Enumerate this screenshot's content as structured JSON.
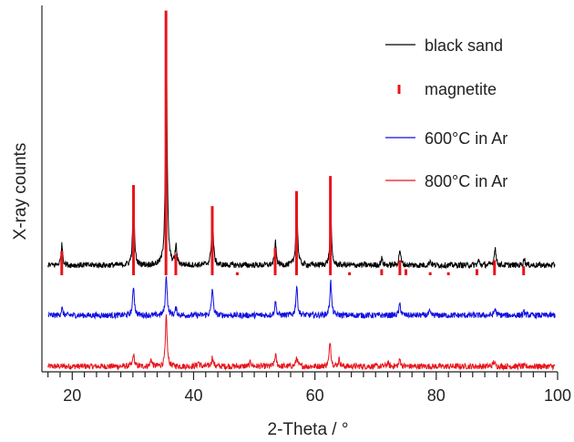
{
  "chart_data": {
    "type": "line",
    "title": "",
    "xlabel": "2-Theta / °",
    "ylabel": "X-ray counts",
    "xlim": [
      15,
      100
    ],
    "x_ticks": [
      20,
      40,
      60,
      80,
      100
    ],
    "x_tick_labels": [
      "20",
      "40",
      "60",
      "80",
      "100"
    ],
    "y_ticks_shown": false,
    "grid": false,
    "legend_position": "top-right",
    "legend": [
      {
        "label": "black sand",
        "symbol": "line",
        "color": "#000000"
      },
      {
        "label": "magnetite",
        "symbol": "tick",
        "color": "#e8141b"
      },
      {
        "label": "600°C in Ar",
        "symbol": "line",
        "color": "#1010e0"
      },
      {
        "label": "800°C in Ar",
        "symbol": "line",
        "color": "#e8141b"
      }
    ],
    "series": [
      {
        "name": "black sand",
        "color": "#000000",
        "baseline": 0,
        "noise": 1.6,
        "peaks": [
          [
            18.3,
            9
          ],
          [
            30.1,
            30
          ],
          [
            35.5,
            100
          ],
          [
            37.1,
            8
          ],
          [
            43.1,
            25
          ],
          [
            53.5,
            10
          ],
          [
            57.0,
            29
          ],
          [
            62.6,
            22
          ],
          [
            71.0,
            3
          ],
          [
            74.0,
            7
          ],
          [
            79.0,
            2
          ],
          [
            87.0,
            2
          ],
          [
            89.7,
            8
          ],
          [
            94.5,
            3
          ]
        ]
      },
      {
        "name": "magnetite",
        "color": "#e8141b",
        "type": "reference-sticks",
        "sticks": [
          [
            18.27,
            8
          ],
          [
            30.1,
            30
          ],
          [
            35.45,
            88
          ],
          [
            37.07,
            7
          ],
          [
            43.08,
            23
          ],
          [
            47.2,
            1
          ],
          [
            53.45,
            9
          ],
          [
            56.97,
            28
          ],
          [
            62.55,
            33
          ],
          [
            65.7,
            1
          ],
          [
            71.0,
            2
          ],
          [
            74.0,
            5
          ],
          [
            75.0,
            2
          ],
          [
            79.0,
            1
          ],
          [
            82.0,
            1
          ],
          [
            86.7,
            2
          ],
          [
            89.6,
            5
          ],
          [
            94.4,
            3
          ]
        ]
      },
      {
        "name": "600°C in Ar",
        "color": "#1010e0",
        "baseline": 0,
        "noise": 1.6,
        "peaks": [
          [
            18.3,
            3
          ],
          [
            30.1,
            13
          ],
          [
            35.5,
            18
          ],
          [
            37.1,
            3
          ],
          [
            43.1,
            12
          ],
          [
            53.5,
            6
          ],
          [
            57.0,
            13
          ],
          [
            62.6,
            15
          ],
          [
            74.0,
            5
          ],
          [
            78.9,
            1.5
          ],
          [
            89.7,
            3
          ],
          [
            94.5,
            1.5
          ]
        ]
      },
      {
        "name": "800°C in Ar",
        "color": "#e8141b",
        "baseline": 0,
        "noise": 1.6,
        "peaks": [
          [
            30.1,
            5
          ],
          [
            33.0,
            3
          ],
          [
            35.5,
            22
          ],
          [
            40.8,
            2
          ],
          [
            43.1,
            4
          ],
          [
            49.4,
            2
          ],
          [
            53.5,
            5
          ],
          [
            57.0,
            4
          ],
          [
            62.5,
            11
          ],
          [
            64.0,
            3
          ],
          [
            72.0,
            1.5
          ],
          [
            74.0,
            3
          ],
          [
            89.5,
            2
          ]
        ]
      }
    ]
  }
}
